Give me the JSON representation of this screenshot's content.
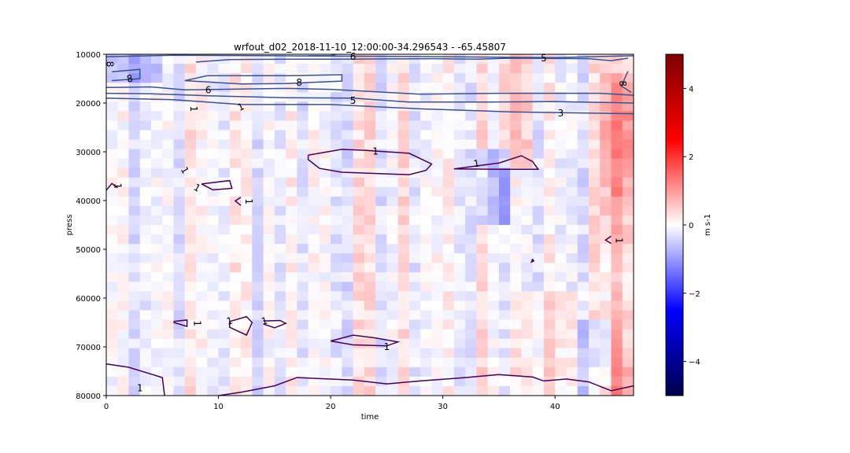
{
  "chart_data": {
    "type": "heatmap",
    "title": "wrfout_d02_2018-11-10_12:00:00-34.296543 - -65.45807",
    "xlabel": "time",
    "ylabel": "press",
    "xlim": [
      0,
      47
    ],
    "ylim": [
      10000,
      80000
    ],
    "y_inverted": true,
    "x_ticks": [
      0,
      10,
      20,
      30,
      40
    ],
    "x_tick_labels": [
      "0",
      "10",
      "20",
      "30",
      "40"
    ],
    "y_ticks": [
      10000,
      20000,
      30000,
      40000,
      50000,
      60000,
      70000,
      80000
    ],
    "y_tick_labels": [
      "10000",
      "20000",
      "30000",
      "40000",
      "50000",
      "60000",
      "70000",
      "80000"
    ],
    "colorbar": {
      "label": "m s-1",
      "colormap": "seismic",
      "range": [
        -5,
        5
      ],
      "ticks": [
        4,
        2,
        0,
        -2,
        -4
      ],
      "tick_labels": [
        "4",
        "2",
        "0",
        "−2",
        "−4"
      ]
    },
    "heatmap_grid": {
      "nx": 47,
      "ny": 36,
      "value_range_shown": [
        -1.2,
        1.4
      ]
    },
    "colors": {
      "contour_light": "#3b528b",
      "contour_dark": "#440154",
      "cmap_dark_blue": "#00004c",
      "cmap_blue": "#0000ff",
      "cmap_white": "#ffffff",
      "cmap_red": "#ff0000",
      "cmap_dark_red": "#800000"
    },
    "contours": [
      {
        "level": 8,
        "label": "8",
        "points": [
          [
            0.5,
            13600
          ],
          [
            3,
            13100
          ],
          [
            3,
            15000
          ],
          [
            0.5,
            15400
          ]
        ]
      },
      {
        "level": 8,
        "label": "8",
        "points": [
          [
            7,
            15400
          ],
          [
            9,
            14400
          ],
          [
            16,
            14400
          ],
          [
            21,
            14200
          ],
          [
            21,
            15500
          ],
          [
            16,
            16000
          ],
          [
            12,
            16100
          ],
          [
            7,
            15400
          ]
        ]
      },
      {
        "level": 8,
        "label": "8",
        "points": [
          [
            46.5,
            13500
          ],
          [
            45.9,
            16500
          ],
          [
            46.8,
            17800
          ]
        ]
      },
      {
        "level": 6,
        "label": "6",
        "points": [
          [
            8,
            11600
          ],
          [
            11,
            11100
          ],
          [
            16,
            11000
          ],
          [
            21,
            11000
          ],
          [
            29,
            10900
          ],
          [
            33,
            11000
          ],
          [
            36,
            10800
          ],
          [
            43,
            10900
          ],
          [
            45,
            11300
          ],
          [
            46.5,
            10800
          ]
        ]
      },
      {
        "level": 6,
        "label": "6",
        "points": [
          [
            0,
            16800
          ],
          [
            4,
            16700
          ],
          [
            7,
            17300
          ],
          [
            16,
            17000
          ],
          [
            20,
            17200
          ],
          [
            28,
            18200
          ],
          [
            35,
            18000
          ],
          [
            44,
            18000
          ],
          [
            47,
            18400
          ]
        ]
      },
      {
        "level": 6,
        "label": "6",
        "points": [
          [
            20.5,
            10000
          ],
          [
            20,
            10300
          ],
          [
            18,
            10300
          ]
        ]
      },
      {
        "level": 5,
        "label": "5",
        "points": [
          [
            0,
            18000
          ],
          [
            4,
            18100
          ],
          [
            9,
            18500
          ],
          [
            16,
            18900
          ],
          [
            22,
            19000
          ],
          [
            27,
            19800
          ],
          [
            34,
            19800
          ],
          [
            40,
            19700
          ],
          [
            47,
            20000
          ]
        ]
      },
      {
        "level": 5,
        "label": "5",
        "points": [
          [
            0,
            10500
          ],
          [
            6,
            10200
          ],
          [
            15,
            10300
          ],
          [
            30,
            10500
          ],
          [
            40,
            10700
          ],
          [
            47,
            10300
          ]
        ]
      },
      {
        "level": 3,
        "label": "3",
        "points": [
          [
            0,
            19000
          ],
          [
            6,
            19300
          ],
          [
            12,
            20300
          ],
          [
            20,
            20300
          ],
          [
            28,
            21200
          ],
          [
            36,
            21800
          ],
          [
            41,
            22000
          ],
          [
            47,
            22200
          ]
        ]
      },
      {
        "level": 1,
        "label": "1",
        "points": [
          [
            18,
            30700
          ],
          [
            21,
            29500
          ],
          [
            23,
            29700
          ],
          [
            27,
            30300
          ],
          [
            29,
            32500
          ],
          [
            28.5,
            33800
          ],
          [
            27,
            34700
          ],
          [
            21,
            34200
          ],
          [
            19,
            33400
          ],
          [
            18,
            31600
          ],
          [
            18,
            30700
          ]
        ]
      },
      {
        "level": 1,
        "label": "1",
        "points": [
          [
            31,
            33500
          ],
          [
            35,
            32300
          ],
          [
            37,
            30800
          ],
          [
            38,
            32000
          ],
          [
            38.5,
            33600
          ],
          [
            35,
            33600
          ],
          [
            31,
            33500
          ]
        ]
      },
      {
        "level": 1,
        "label": "1",
        "points": [
          [
            0,
            37900
          ],
          [
            0.5,
            36500
          ],
          [
            1,
            37400
          ]
        ]
      },
      {
        "level": 1,
        "label": "1",
        "points": [
          [
            8.5,
            36600
          ],
          [
            11,
            35900
          ],
          [
            11.2,
            37500
          ],
          [
            9.5,
            37800
          ],
          [
            8.5,
            36600
          ]
        ]
      },
      {
        "level": 1,
        "label": "1",
        "points": [
          [
            12,
            39300
          ],
          [
            11.5,
            40100
          ],
          [
            12,
            41000
          ]
        ]
      },
      {
        "level": 1,
        "label": "1",
        "points": [
          [
            45,
            47300
          ],
          [
            44.5,
            48100
          ],
          [
            45,
            48800
          ]
        ]
      },
      {
        "level": 1,
        "label": "1",
        "points": [
          [
            38,
            52000
          ],
          [
            38.1,
            52400
          ],
          [
            37.9,
            52600
          ],
          [
            38,
            52000
          ]
        ]
      },
      {
        "level": 1,
        "label": "1",
        "points": [
          [
            6,
            64800
          ],
          [
            7.2,
            64500
          ],
          [
            7.2,
            65800
          ],
          [
            6,
            65000
          ]
        ]
      },
      {
        "level": 1,
        "label": "1",
        "points": [
          [
            11,
            64800
          ],
          [
            12.5,
            63800
          ],
          [
            13,
            65000
          ],
          [
            12.5,
            67600
          ],
          [
            11,
            66000
          ],
          [
            11,
            64800
          ]
        ]
      },
      {
        "level": 1,
        "label": "1",
        "points": [
          [
            14,
            64700
          ],
          [
            15.5,
            64600
          ],
          [
            16,
            65200
          ],
          [
            15,
            66100
          ],
          [
            14,
            65300
          ]
        ]
      },
      {
        "level": 1,
        "label": "1",
        "points": [
          [
            20,
            68800
          ],
          [
            22,
            67600
          ],
          [
            24,
            68200
          ],
          [
            26,
            69000
          ],
          [
            25,
            69800
          ],
          [
            22,
            69600
          ],
          [
            20,
            68800
          ]
        ]
      },
      {
        "level": 1,
        "label": "1",
        "points": [
          [
            0,
            73500
          ],
          [
            2,
            74200
          ],
          [
            4,
            75600
          ],
          [
            5,
            76300
          ],
          [
            5.2,
            80000
          ]
        ]
      },
      {
        "level": 1,
        "label": "1",
        "points": [
          [
            10,
            80000
          ],
          [
            12,
            79300
          ],
          [
            15,
            78000
          ],
          [
            17,
            76300
          ],
          [
            22,
            76800
          ],
          [
            25,
            77600
          ],
          [
            28,
            77000
          ],
          [
            32,
            76300
          ],
          [
            35,
            75700
          ],
          [
            38,
            76200
          ],
          [
            39,
            77000
          ],
          [
            41,
            76600
          ],
          [
            43,
            77200
          ],
          [
            45,
            79000
          ],
          [
            47,
            78000
          ]
        ]
      }
    ],
    "contour_labels": [
      {
        "text": "8",
        "x": 0.3,
        "y": 12000,
        "rotate": 90
      },
      {
        "text": "8",
        "x": 2.1,
        "y": 15000,
        "rotate": -12
      },
      {
        "text": "8",
        "x": 17.2,
        "y": 15800,
        "rotate": 0
      },
      {
        "text": "8",
        "x": 46.0,
        "y": 16000,
        "rotate": 90
      },
      {
        "text": "6",
        "x": 22.0,
        "y": 10500,
        "rotate": 0
      },
      {
        "text": "6",
        "x": 9.1,
        "y": 17300,
        "rotate": 0
      },
      {
        "text": "5",
        "x": 39.0,
        "y": 10800,
        "rotate": 0
      },
      {
        "text": "5",
        "x": 22.0,
        "y": 19500,
        "rotate": 0
      },
      {
        "text": "3",
        "x": 40.5,
        "y": 22100,
        "rotate": 0
      },
      {
        "text": "1",
        "x": 7.8,
        "y": 21200,
        "rotate": 90
      },
      {
        "text": "1",
        "x": 12.0,
        "y": 20800,
        "rotate": -25
      },
      {
        "text": "1",
        "x": 24.0,
        "y": 29900,
        "rotate": 0
      },
      {
        "text": "1",
        "x": 33.0,
        "y": 32400,
        "rotate": -10
      },
      {
        "text": "1",
        "x": 7.0,
        "y": 33800,
        "rotate": 60
      },
      {
        "text": "1",
        "x": 1.0,
        "y": 37000,
        "rotate": 90
      },
      {
        "text": "1",
        "x": 8.1,
        "y": 37400,
        "rotate": 30
      },
      {
        "text": "1",
        "x": 12.7,
        "y": 40200,
        "rotate": 90
      },
      {
        "text": "1",
        "x": 45.7,
        "y": 48200,
        "rotate": 90
      },
      {
        "text": "1",
        "x": 8.1,
        "y": 65200,
        "rotate": 90
      },
      {
        "text": "1",
        "x": 11.0,
        "y": 64700,
        "rotate": -15
      },
      {
        "text": "1",
        "x": 14.1,
        "y": 64700,
        "rotate": -15
      },
      {
        "text": "1",
        "x": 25.0,
        "y": 70000,
        "rotate": 0
      },
      {
        "text": "1",
        "x": 3.0,
        "y": 78500,
        "rotate": 0
      }
    ]
  }
}
